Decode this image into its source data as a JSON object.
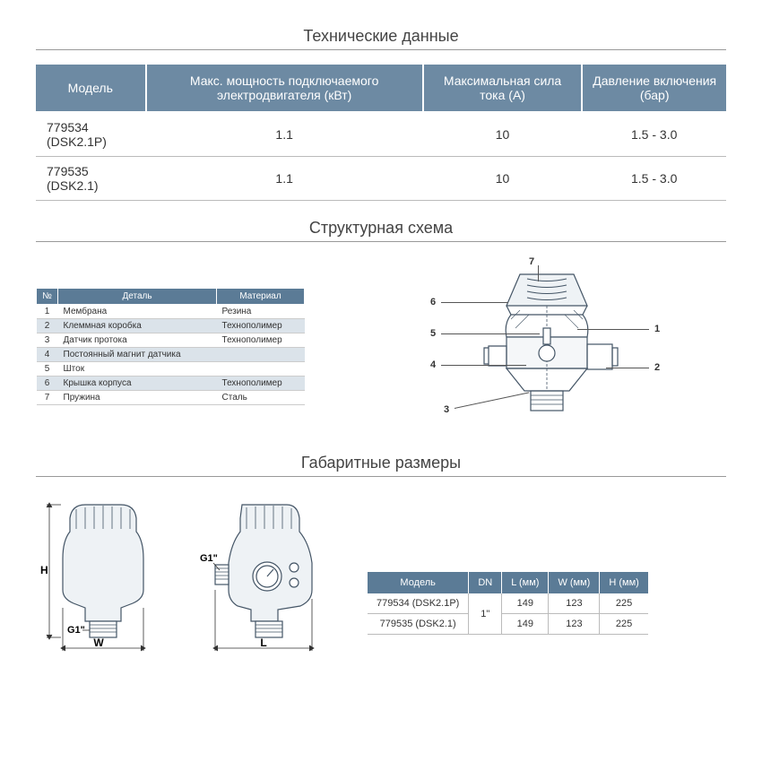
{
  "sections": {
    "tech": "Технические данные",
    "struct": "Структурная схема",
    "dims": "Габаритные размеры"
  },
  "tech_table": {
    "columns": [
      "Модель",
      "Макс. мощность подключаемого электродвигателя (кВт)",
      "Максимальная сила тока (А)",
      "Давление включения (бар)"
    ],
    "rows": [
      [
        "779534 (DSK2.1P)",
        "1.1",
        "10",
        "1.5 - 3.0"
      ],
      [
        "779535 (DSK2.1)",
        "1.1",
        "10",
        "1.5 - 3.0"
      ]
    ],
    "header_bg": "#6d8aa3",
    "header_color": "#ffffff"
  },
  "parts_table": {
    "columns": [
      "№",
      "Деталь",
      "Материал"
    ],
    "rows": [
      [
        "1",
        "Мембрана",
        "Резина"
      ],
      [
        "2",
        "Клеммная коробка",
        "Технополимер"
      ],
      [
        "3",
        "Датчик протока",
        "Технополимер"
      ],
      [
        "4",
        "Постоянный магнит датчика",
        ""
      ],
      [
        "5",
        "Шток",
        ""
      ],
      [
        "6",
        "Крышка корпуса",
        "Технополимер"
      ],
      [
        "7",
        "Пружина",
        "Сталь"
      ]
    ],
    "header_bg": "#5b7b96",
    "stripe_bg": "#dbe3ea"
  },
  "callouts": [
    "1",
    "2",
    "3",
    "4",
    "5",
    "6",
    "7"
  ],
  "dim_labels": {
    "H": "H",
    "W": "W",
    "L": "L",
    "G1a": "G1\"",
    "G1b": "G1\""
  },
  "dim_table": {
    "columns": [
      "Модель",
      "DN",
      "L (мм)",
      "W (мм)",
      "H (мм)"
    ],
    "rows": [
      [
        "779534 (DSK2.1P)",
        "1\"",
        "149",
        "123",
        "225"
      ],
      [
        "779535 (DSK2.1)",
        "",
        "149",
        "123",
        "225"
      ]
    ],
    "dn_rowspan": 2,
    "header_bg": "#5b7b96"
  },
  "colors": {
    "outline": "#445566",
    "fill_light": "#eef2f5",
    "grid": "#bbbbbb"
  }
}
